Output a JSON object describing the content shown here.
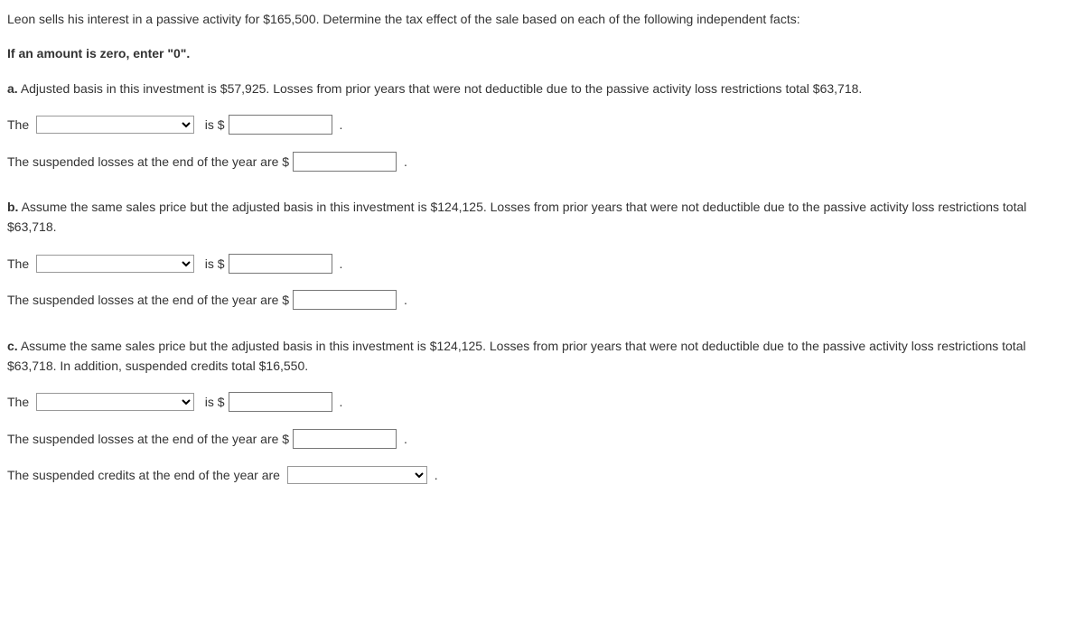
{
  "intro": "Leon sells his interest in a passive activity for $165,500. Determine the tax effect of the sale based on each of the following independent facts:",
  "instruction": "If an amount is zero, enter \"0\".",
  "parts": {
    "a": {
      "label": "a.",
      "prompt": "Adjusted basis in this investment is $57,925. Losses from prior years that were not deductible due to the passive activity loss restrictions total $63,718.",
      "line1_prefix": "The ",
      "line1_mid": "  is $",
      "line1_suffix": " .",
      "line2_prefix": "The suspended losses at the end of the year are $",
      "line2_suffix": " ."
    },
    "b": {
      "label": "b.",
      "prompt": "Assume the same sales price but the adjusted basis in this investment is $124,125. Losses from prior years that were not deductible due to the passive activity loss restrictions total $63,718.",
      "line1_prefix": "The ",
      "line1_mid": "  is $",
      "line1_suffix": " .",
      "line2_prefix": "The suspended losses at the end of the year are $",
      "line2_suffix": " ."
    },
    "c": {
      "label": "c.",
      "prompt": "Assume the same sales price but the adjusted basis in this investment is $124,125. Losses from prior years that were not deductible due to the passive activity loss restrictions total $63,718. In addition, suspended credits total $16,550.",
      "line1_prefix": "The ",
      "line1_mid": "  is $",
      "line1_suffix": " .",
      "line2_prefix": "The suspended losses at the end of the year are $",
      "line2_suffix": " .",
      "line3_prefix": "The suspended credits at the end of the year are ",
      "line3_suffix": " ."
    }
  }
}
